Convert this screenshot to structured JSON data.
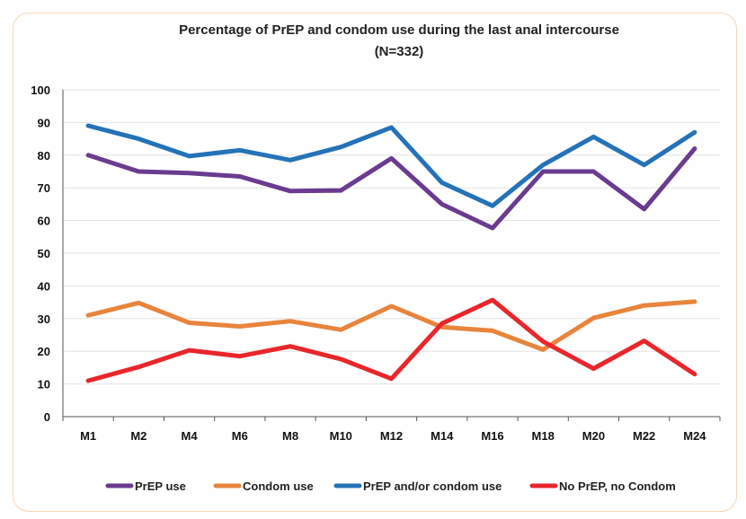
{
  "chart_data": {
    "type": "line",
    "title": "Percentage of PrEP and condom use during the last anal intercourse",
    "subtitle": "(N=332)",
    "xlabel": "",
    "ylabel": "",
    "ylim": [
      0,
      100
    ],
    "yticks": [
      "0",
      "10",
      "20",
      "30",
      "40",
      "50",
      "60",
      "70",
      "80",
      "90",
      "100"
    ],
    "categories": [
      "M1",
      "M2",
      "M4",
      "M6",
      "M8",
      "M10",
      "M12",
      "M14",
      "M16",
      "M18",
      "M20",
      "M22",
      "M24"
    ],
    "grid": true,
    "legend_position": "bottom",
    "series": [
      {
        "name": "PrEP use",
        "color": "#6a3b8f",
        "values": [
          80,
          75,
          74.5,
          73.5,
          69,
          69.2,
          79,
          65,
          57.7,
          75,
          75,
          63.5,
          82
        ]
      },
      {
        "name": "Condom use",
        "color": "#e8843c",
        "values": [
          31,
          34.8,
          28.7,
          27.6,
          29.2,
          26.6,
          33.8,
          27.4,
          26.3,
          20.5,
          30.2,
          34,
          35.2
        ]
      },
      {
        "name": "PrEP and/or condom use",
        "color": "#2472b8",
        "values": [
          89,
          85,
          79.7,
          81.5,
          78.5,
          82.5,
          88.5,
          71.6,
          64.5,
          77,
          85.6,
          77,
          87
        ]
      },
      {
        "name": "No PrEP, no Condom",
        "color": "#e8262b",
        "values": [
          11,
          15.2,
          20.3,
          18.5,
          21.5,
          17.6,
          11.6,
          28.5,
          35.7,
          23,
          14.7,
          23.2,
          13
        ]
      }
    ]
  }
}
